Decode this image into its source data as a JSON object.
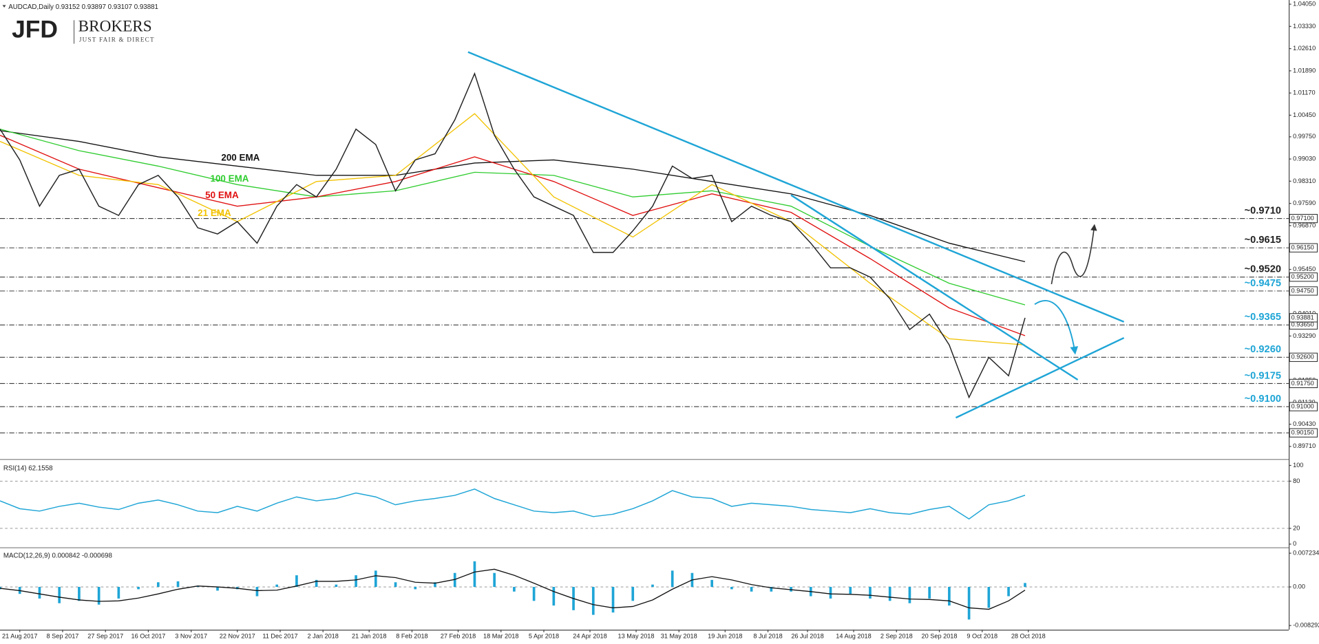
{
  "logo": {
    "mark": "JFD",
    "name": "BROKERS",
    "tagline": "JUST FAIR & DIRECT"
  },
  "chart_data": [
    {
      "type": "line",
      "title": "AUDCAD,Daily",
      "ohlc": [
        0.93152,
        0.93897,
        0.93107,
        0.93881
      ],
      "color": "#222222",
      "x": [
        0,
        6,
        12,
        18,
        24,
        30,
        36,
        42,
        48,
        54,
        60,
        66,
        72,
        78,
        84,
        90,
        96,
        102,
        108,
        114,
        120,
        126,
        132,
        138,
        144,
        150,
        156,
        162,
        168,
        174,
        180,
        186,
        192,
        198,
        204,
        210,
        216,
        222,
        228,
        234,
        240,
        246,
        252,
        258,
        264,
        270,
        276,
        282,
        288,
        294,
        300,
        306,
        311
      ],
      "values": [
        1.0,
        0.99,
        0.975,
        0.985,
        0.987,
        0.975,
        0.972,
        0.982,
        0.985,
        0.978,
        0.968,
        0.966,
        0.97,
        0.963,
        0.975,
        0.982,
        0.978,
        0.987,
        1.0,
        0.995,
        0.98,
        0.99,
        0.992,
        1.003,
        1.018,
        0.998,
        0.987,
        0.978,
        0.975,
        0.972,
        0.96,
        0.96,
        0.967,
        0.975,
        0.988,
        0.984,
        0.985,
        0.97,
        0.975,
        0.972,
        0.97,
        0.963,
        0.955,
        0.955,
        0.952,
        0.945,
        0.935,
        0.94,
        0.93,
        0.913,
        0.926,
        0.92,
        0.9388
      ],
      "series": [
        {
          "name": "200 EMA",
          "color": "#111111",
          "x": [
            0,
            24,
            48,
            72,
            96,
            120,
            144,
            168,
            192,
            216,
            240,
            264,
            288,
            311
          ],
          "values": [
            0.9995,
            0.996,
            0.991,
            0.988,
            0.985,
            0.985,
            0.989,
            0.99,
            0.987,
            0.983,
            0.979,
            0.972,
            0.963,
            0.957
          ]
        },
        {
          "name": "100 EMA",
          "color": "#2ecc2e",
          "x": [
            0,
            24,
            48,
            72,
            96,
            120,
            144,
            168,
            192,
            216,
            240,
            264,
            288,
            311
          ],
          "values": [
            1.0,
            0.993,
            0.988,
            0.982,
            0.978,
            0.98,
            0.986,
            0.985,
            0.978,
            0.98,
            0.975,
            0.962,
            0.95,
            0.943
          ]
        },
        {
          "name": "50 EMA",
          "color": "#e01010",
          "x": [
            0,
            24,
            48,
            72,
            96,
            120,
            144,
            168,
            192,
            216,
            240,
            264,
            288,
            311
          ],
          "values": [
            0.998,
            0.987,
            0.981,
            0.975,
            0.978,
            0.983,
            0.991,
            0.983,
            0.972,
            0.979,
            0.973,
            0.958,
            0.942,
            0.933
          ]
        },
        {
          "name": "21 EMA",
          "color": "#f2c200",
          "x": [
            0,
            24,
            48,
            72,
            96,
            120,
            144,
            168,
            192,
            216,
            240,
            264,
            288,
            311
          ],
          "values": [
            0.996,
            0.985,
            0.982,
            0.97,
            0.983,
            0.985,
            1.005,
            0.978,
            0.965,
            0.982,
            0.97,
            0.95,
            0.932,
            0.93
          ]
        }
      ],
      "trendlines": [
        {
          "x": [
            142,
            341
          ],
          "y": [
            1.025,
            0.9375
          ]
        },
        {
          "x": [
            240,
            327
          ],
          "y": [
            0.9786,
            0.9187
          ]
        },
        {
          "x": [
            290,
            341
          ],
          "y": [
            0.9064,
            0.9323
          ]
        }
      ],
      "trendline_color": "#1fa5d6",
      "levels": [
        {
          "value": 0.971,
          "label": "0.97100",
          "annotation": "~0.9710",
          "annotation_color": "#222222"
        },
        {
          "value": 0.9615,
          "label": "0.96150",
          "annotation": "~0.9615",
          "annotation_color": "#222222"
        },
        {
          "value": 0.952,
          "label": "0.95200",
          "annotation": "~0.9520",
          "annotation_color": "#222222"
        },
        {
          "value": 0.9475,
          "label": "0.94750",
          "annotation": "~0.9475",
          "annotation_color": "#1fa5d6"
        },
        {
          "value": 0.9365,
          "label": "0.93650",
          "annotation": "~0.9365",
          "annotation_color": "#1fa5d6"
        },
        {
          "value": 0.926,
          "label": "0.92600",
          "annotation": "~0.9260",
          "annotation_color": "#1fa5d6"
        },
        {
          "value": 0.9175,
          "label": "0.91750",
          "annotation": "~0.9175",
          "annotation_color": "#1fa5d6"
        },
        {
          "value": 0.91,
          "label": "0.91000",
          "annotation": "~0.9100",
          "annotation_color": "#1fa5d6"
        },
        {
          "value": 0.9015,
          "label": "0.90150"
        }
      ],
      "xlim": [
        0,
        391
      ],
      "ylim": [
        0.89328,
        1.04186
      ],
      "yticks": [
        {
          "value": 1.0405,
          "label": "1.04050"
        },
        {
          "value": 1.0333,
          "label": "1.03330"
        },
        {
          "value": 1.0261,
          "label": "1.02610"
        },
        {
          "value": 1.0189,
          "label": "1.01890"
        },
        {
          "value": 1.0117,
          "label": "1.01170"
        },
        {
          "value": 1.0045,
          "label": "1.00450"
        },
        {
          "value": 0.9975,
          "label": "0.99750"
        },
        {
          "value": 0.9903,
          "label": "0.99030"
        },
        {
          "value": 0.9831,
          "label": "0.98310"
        },
        {
          "value": 0.9759,
          "label": "0.97590"
        },
        {
          "value": 0.9687,
          "label": "0.96870"
        },
        {
          "value": 0.9615,
          "label": "0.96150"
        },
        {
          "value": 0.9545,
          "label": "0.95450"
        },
        {
          "value": 0.9473,
          "label": "0.94730"
        },
        {
          "value": 0.9401,
          "label": "0.94010"
        },
        {
          "value": 0.9329,
          "label": "0.93290"
        },
        {
          "value": 0.9257,
          "label": "0.92570"
        },
        {
          "value": 0.9185,
          "label": "0.91850"
        },
        {
          "value": 0.9113,
          "label": "0.91130"
        },
        {
          "value": 0.9043,
          "label": "0.90430"
        },
        {
          "value": 0.8971,
          "label": "0.89710"
        }
      ]
    },
    {
      "type": "line",
      "title": "RSI(14)",
      "color": "#1fa5d6",
      "x": [
        0,
        6,
        12,
        18,
        24,
        30,
        36,
        42,
        48,
        54,
        60,
        66,
        72,
        78,
        84,
        90,
        96,
        102,
        108,
        114,
        120,
        126,
        132,
        138,
        144,
        150,
        156,
        162,
        168,
        174,
        180,
        186,
        192,
        198,
        204,
        210,
        216,
        222,
        228,
        234,
        240,
        246,
        252,
        258,
        264,
        270,
        276,
        282,
        288,
        294,
        300,
        306,
        311
      ],
      "values": [
        55,
        45,
        42,
        48,
        52,
        47,
        44,
        52,
        56,
        50,
        42,
        40,
        48,
        42,
        52,
        60,
        55,
        58,
        65,
        60,
        50,
        55,
        58,
        62,
        70,
        58,
        50,
        42,
        40,
        42,
        35,
        38,
        45,
        55,
        68,
        60,
        58,
        48,
        52,
        50,
        48,
        44,
        42,
        40,
        45,
        40,
        38,
        44,
        48,
        32,
        50,
        55,
        62.1558
      ],
      "xlim": [
        0,
        391
      ],
      "ylim": [
        -3,
        106
      ],
      "yticks": [
        100,
        80,
        20,
        0
      ]
    },
    {
      "type": "macd",
      "title": "MACD(12,26,9)",
      "color": "#1fa5d6",
      "signal_color": "#111111",
      "x": [
        0,
        6,
        12,
        18,
        24,
        30,
        36,
        42,
        48,
        54,
        60,
        66,
        72,
        78,
        84,
        90,
        96,
        102,
        108,
        114,
        120,
        126,
        132,
        138,
        144,
        150,
        156,
        162,
        168,
        174,
        180,
        186,
        192,
        198,
        204,
        210,
        216,
        222,
        228,
        234,
        240,
        246,
        252,
        258,
        264,
        270,
        276,
        282,
        288,
        294,
        300,
        306,
        311
      ],
      "histogram": [
        -0.0005,
        -0.0015,
        -0.0025,
        -0.0035,
        -0.003,
        -0.0038,
        -0.0025,
        -0.0005,
        0.001,
        0.0012,
        0.0002,
        -0.0008,
        -0.0005,
        -0.002,
        0.0005,
        0.0025,
        0.0015,
        0.0005,
        0.0025,
        0.0035,
        0.001,
        -0.0005,
        0.001,
        0.003,
        0.0055,
        0.003,
        -0.001,
        -0.003,
        -0.004,
        -0.005,
        -0.006,
        -0.0055,
        -0.003,
        0.0005,
        0.0035,
        0.003,
        0.0015,
        -0.0005,
        -0.001,
        -0.001,
        -0.001,
        -0.002,
        -0.0025,
        -0.0015,
        -0.0025,
        -0.003,
        -0.0035,
        -0.0025,
        -0.004,
        -0.007,
        -0.0045,
        -0.002,
        0.000842
      ],
      "signal": [
        -0.0003,
        -0.0008,
        -0.0015,
        -0.0022,
        -0.0028,
        -0.0031,
        -0.003,
        -0.0024,
        -0.0015,
        -0.0005,
        0.0002,
        0,
        -0.0003,
        -0.0008,
        -0.0007,
        0.0002,
        0.0012,
        0.0012,
        0.0015,
        0.0024,
        0.002,
        0.001,
        0.0008,
        0.0016,
        0.0032,
        0.0038,
        0.0025,
        0.0008,
        -0.001,
        -0.0025,
        -0.0038,
        -0.0045,
        -0.0042,
        -0.0028,
        -0.0005,
        0.0015,
        0.0022,
        0.0015,
        0.0005,
        -0.0002,
        -0.0006,
        -0.001,
        -0.0015,
        -0.0016,
        -0.0018,
        -0.0022,
        -0.0026,
        -0.0027,
        -0.003,
        -0.0045,
        -0.0048,
        -0.003,
        -0.000698
      ],
      "xlim": [
        0,
        391
      ],
      "ylim": [
        -0.00901,
        0.00814
      ],
      "yticks": [
        0.007234,
        {
          "value": 0,
          "label": "0.00"
        },
        -0.008292
      ],
      "xticks": [
        {
          "value": 6,
          "label": "21 Aug 2017"
        },
        {
          "value": 19,
          "label": "8 Sep 2017"
        },
        {
          "value": 32,
          "label": "27 Sep 2017"
        },
        {
          "value": 45,
          "label": "16 Oct 2017"
        },
        {
          "value": 58,
          "label": "3 Nov 2017"
        },
        {
          "value": 72,
          "label": "22 Nov 2017"
        },
        {
          "value": 85,
          "label": "11 Dec 2017"
        },
        {
          "value": 98,
          "label": "2 Jan 2018"
        },
        {
          "value": 112,
          "label": "21 Jan 2018"
        },
        {
          "value": 125,
          "label": "8 Feb 2018"
        },
        {
          "value": 139,
          "label": "27 Feb 2018"
        },
        {
          "value": 152,
          "label": "18 Mar 2018"
        },
        {
          "value": 165,
          "label": "5 Apr 2018"
        },
        {
          "value": 179,
          "label": "24 Apr 2018"
        },
        {
          "value": 193,
          "label": "13 May 2018"
        },
        {
          "value": 206,
          "label": "31 May 2018"
        },
        {
          "value": 220,
          "label": "19 Jun 2018"
        },
        {
          "value": 233,
          "label": "8 Jul 2018"
        },
        {
          "value": 245,
          "label": "26 Jul 2018"
        },
        {
          "value": 259,
          "label": "14 Aug 2018"
        },
        {
          "value": 272,
          "label": "2 Sep 2018"
        },
        {
          "value": 285,
          "label": "20 Sep 2018"
        },
        {
          "value": 298,
          "label": "9 Oct 2018"
        },
        {
          "value": 312,
          "label": "28 Oct 2018"
        }
      ]
    }
  ]
}
